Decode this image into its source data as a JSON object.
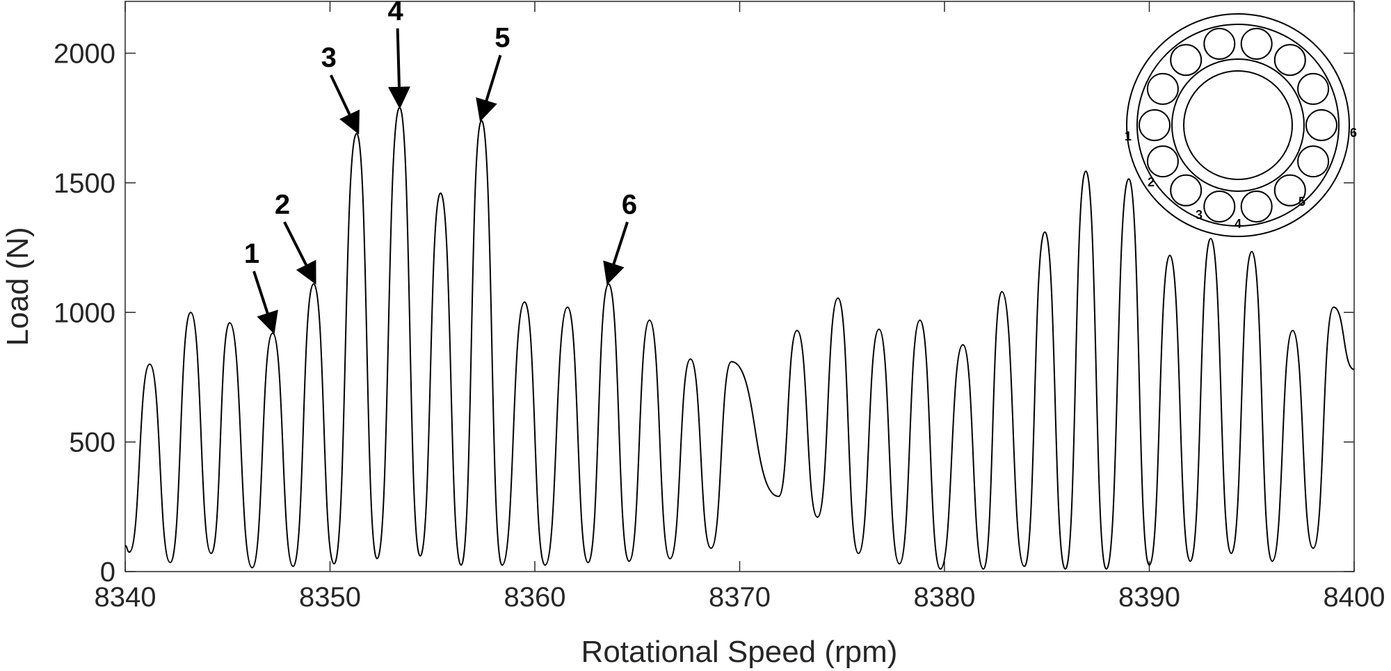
{
  "chart_data": {
    "type": "line",
    "title": "",
    "xlabel": "Rotational Speed (rpm)",
    "ylabel": "Load (N)",
    "xlim": [
      8340,
      8400
    ],
    "ylim": [
      0,
      2200
    ],
    "xticks": [
      8340,
      8350,
      8360,
      8370,
      8380,
      8390,
      8400
    ],
    "xtick_labels": [
      "8340",
      "8350",
      "8360",
      "8370",
      "8380",
      "8390",
      "8400"
    ],
    "yticks": [
      0,
      500,
      1000,
      1500,
      2000
    ],
    "ytick_labels": [
      "0",
      "500",
      "1000",
      "1500",
      "2000"
    ],
    "grid": false,
    "series": [
      {
        "peaks": [
          {
            "x": 8341.2,
            "y": 800
          },
          {
            "x": 8343.2,
            "y": 1000
          },
          {
            "x": 8345.1,
            "y": 960
          },
          {
            "x": 8347.2,
            "y": 920
          },
          {
            "x": 8349.2,
            "y": 1110
          },
          {
            "x": 8351.3,
            "y": 1690
          },
          {
            "x": 8353.4,
            "y": 1790
          },
          {
            "x": 8355.4,
            "y": 1460
          },
          {
            "x": 8357.4,
            "y": 1740
          },
          {
            "x": 8359.5,
            "y": 1040
          },
          {
            "x": 8361.6,
            "y": 1020
          },
          {
            "x": 8363.6,
            "y": 1110
          },
          {
            "x": 8365.6,
            "y": 970
          },
          {
            "x": 8367.6,
            "y": 820
          },
          {
            "x": 8369.6,
            "y": 810
          },
          {
            "x": 8372.8,
            "y": 930
          },
          {
            "x": 8374.8,
            "y": 1055
          },
          {
            "x": 8376.8,
            "y": 935
          },
          {
            "x": 8378.8,
            "y": 970
          },
          {
            "x": 8380.9,
            "y": 875
          },
          {
            "x": 8382.8,
            "y": 1080
          },
          {
            "x": 8384.9,
            "y": 1310
          },
          {
            "x": 8386.9,
            "y": 1545
          },
          {
            "x": 8389.0,
            "y": 1515
          },
          {
            "x": 8391.0,
            "y": 1220
          },
          {
            "x": 8393.0,
            "y": 1285
          },
          {
            "x": 8395.0,
            "y": 1235
          },
          {
            "x": 8397.0,
            "y": 930
          },
          {
            "x": 8399.0,
            "y": 1020
          }
        ],
        "minima": [
          {
            "x": 8340.2,
            "y": 75
          },
          {
            "x": 8342.2,
            "y": 35
          },
          {
            "x": 8344.2,
            "y": 70
          },
          {
            "x": 8346.2,
            "y": 15
          },
          {
            "x": 8348.2,
            "y": 20
          },
          {
            "x": 8350.2,
            "y": 30
          },
          {
            "x": 8352.3,
            "y": 50
          },
          {
            "x": 8354.4,
            "y": 60
          },
          {
            "x": 8356.4,
            "y": 25
          },
          {
            "x": 8358.4,
            "y": 25
          },
          {
            "x": 8360.5,
            "y": 25
          },
          {
            "x": 8362.6,
            "y": 35
          },
          {
            "x": 8364.6,
            "y": 40
          },
          {
            "x": 8366.6,
            "y": 50
          },
          {
            "x": 8368.6,
            "y": 90
          },
          {
            "x": 8371.9,
            "y": 290
          },
          {
            "x": 8373.8,
            "y": 210
          },
          {
            "x": 8375.8,
            "y": 70
          },
          {
            "x": 8377.8,
            "y": 30
          },
          {
            "x": 8379.8,
            "y": 10
          },
          {
            "x": 8381.9,
            "y": 10
          },
          {
            "x": 8383.9,
            "y": 20
          },
          {
            "x": 8385.9,
            "y": 10
          },
          {
            "x": 8387.9,
            "y": 10
          },
          {
            "x": 8390.0,
            "y": 25
          },
          {
            "x": 8392.0,
            "y": 40
          },
          {
            "x": 8394.0,
            "y": 70
          },
          {
            "x": 8396.0,
            "y": 40
          },
          {
            "x": 8398.0,
            "y": 90
          }
        ],
        "end_point": {
          "x": 8400,
          "y": 780
        }
      }
    ],
    "annotations": [
      {
        "label": "1",
        "x": 8347.2,
        "y": 920
      },
      {
        "label": "2",
        "x": 8349.2,
        "y": 1110
      },
      {
        "label": "3",
        "x": 8351.3,
        "y": 1690
      },
      {
        "label": "4",
        "x": 8353.4,
        "y": 1790
      },
      {
        "label": "5",
        "x": 8357.4,
        "y": 1740
      },
      {
        "label": "6",
        "x": 8363.6,
        "y": 1110
      }
    ],
    "inset": {
      "description_type": "bearing-schematic",
      "roller_count": 14,
      "roller_labels": [
        "1",
        "2",
        "3",
        "4",
        "5",
        "6"
      ]
    }
  }
}
